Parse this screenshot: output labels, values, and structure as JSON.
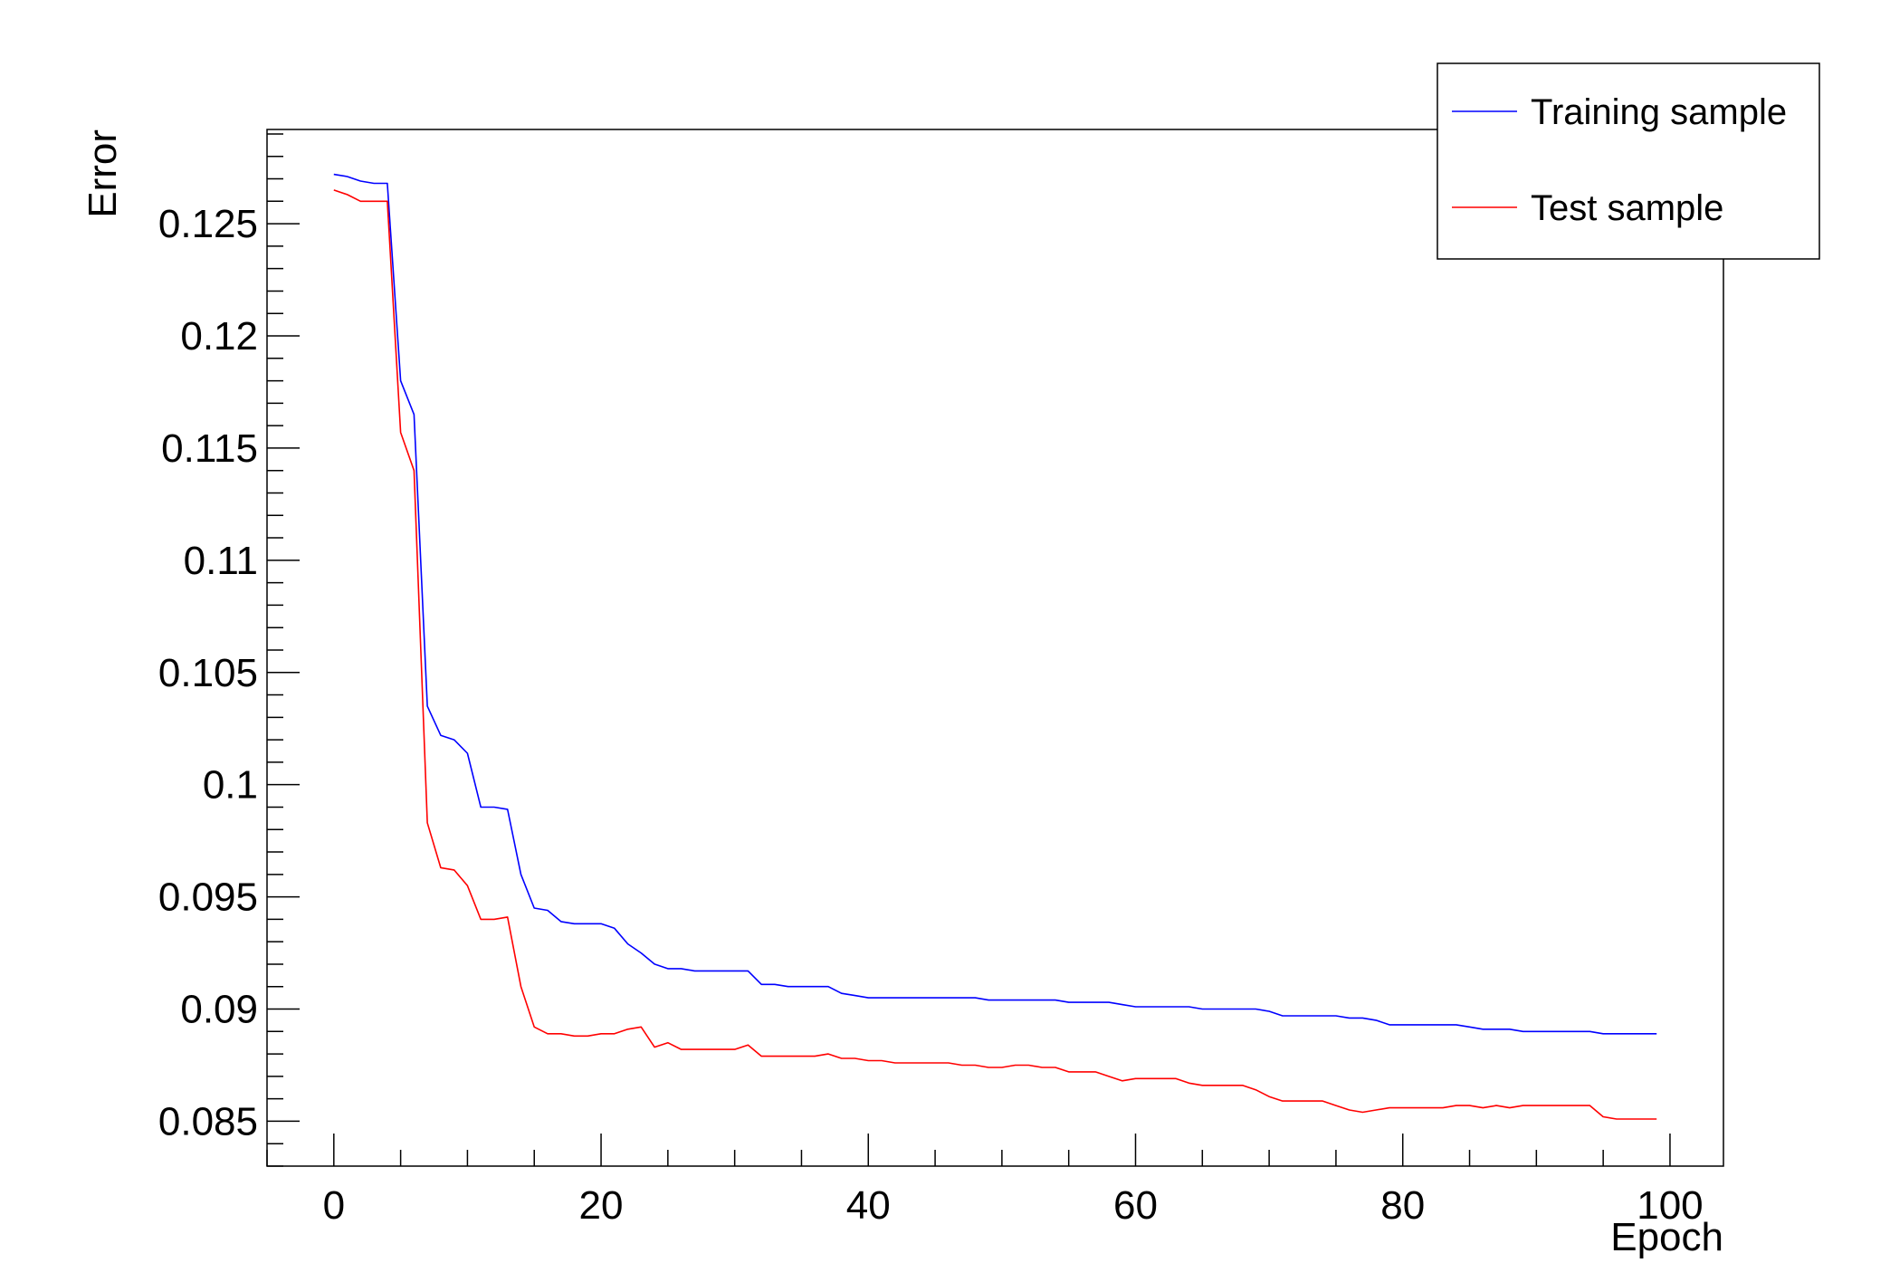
{
  "chart_data": {
    "type": "line",
    "xlabel": "Epoch",
    "ylabel": "Error",
    "xlim": [
      -5,
      104
    ],
    "ylim": [
      0.083,
      0.1292
    ],
    "xticks": [
      0,
      20,
      40,
      60,
      80,
      100
    ],
    "xtick_labels": [
      "0",
      "20",
      "40",
      "60",
      "80",
      "100"
    ],
    "yticks": [
      0.085,
      0.09,
      0.095,
      0.1,
      0.105,
      0.11,
      0.115,
      0.12,
      0.125
    ],
    "ytick_labels": [
      "0.085",
      "0.09",
      "0.095",
      "0.1",
      "0.105",
      "0.11",
      "0.115",
      "0.12",
      "0.125"
    ],
    "grid": false,
    "legend_position": "top-right",
    "series": [
      {
        "name": "Training sample",
        "color": "#0000ff",
        "x": [
          0,
          1,
          2,
          3,
          4,
          5,
          6,
          7,
          8,
          9,
          10,
          11,
          12,
          13,
          14,
          15,
          16,
          17,
          18,
          19,
          20,
          21,
          22,
          23,
          24,
          25,
          26,
          27,
          28,
          29,
          30,
          31,
          32,
          33,
          34,
          35,
          36,
          37,
          38,
          39,
          40,
          41,
          42,
          43,
          44,
          45,
          46,
          47,
          48,
          49,
          50,
          51,
          52,
          53,
          54,
          55,
          56,
          57,
          58,
          59,
          60,
          61,
          62,
          63,
          64,
          65,
          66,
          67,
          68,
          69,
          70,
          71,
          72,
          73,
          74,
          75,
          76,
          77,
          78,
          79,
          80,
          81,
          82,
          83,
          84,
          85,
          86,
          87,
          88,
          89,
          90,
          91,
          92,
          93,
          94,
          95,
          96,
          97,
          98,
          99
        ],
        "y": [
          0.1272,
          0.1271,
          0.1269,
          0.1268,
          0.1268,
          0.118,
          0.1165,
          0.1035,
          0.1022,
          0.102,
          0.1014,
          0.099,
          0.099,
          0.0989,
          0.096,
          0.0945,
          0.0944,
          0.0939,
          0.0938,
          0.0938,
          0.0938,
          0.0936,
          0.0929,
          0.0925,
          0.092,
          0.0918,
          0.0918,
          0.0917,
          0.0917,
          0.0917,
          0.0917,
          0.0917,
          0.0911,
          0.0911,
          0.091,
          0.091,
          0.091,
          0.091,
          0.0907,
          0.0906,
          0.0905,
          0.0905,
          0.0905,
          0.0905,
          0.0905,
          0.0905,
          0.0905,
          0.0905,
          0.0905,
          0.0904,
          0.0904,
          0.0904,
          0.0904,
          0.0904,
          0.0904,
          0.0903,
          0.0903,
          0.0903,
          0.0903,
          0.0902,
          0.0901,
          0.0901,
          0.0901,
          0.0901,
          0.0901,
          0.09,
          0.09,
          0.09,
          0.09,
          0.09,
          0.0899,
          0.0897,
          0.0897,
          0.0897,
          0.0897,
          0.0897,
          0.0896,
          0.0896,
          0.0895,
          0.0893,
          0.0893,
          0.0893,
          0.0893,
          0.0893,
          0.0893,
          0.0892,
          0.0891,
          0.0891,
          0.0891,
          0.089,
          0.089,
          0.089,
          0.089,
          0.089,
          0.089,
          0.0889,
          0.0889,
          0.0889,
          0.0889,
          0.0889
        ]
      },
      {
        "name": "Test sample",
        "color": "#ff0000",
        "x": [
          0,
          1,
          2,
          3,
          4,
          5,
          6,
          7,
          8,
          9,
          10,
          11,
          12,
          13,
          14,
          15,
          16,
          17,
          18,
          19,
          20,
          21,
          22,
          23,
          24,
          25,
          26,
          27,
          28,
          29,
          30,
          31,
          32,
          33,
          34,
          35,
          36,
          37,
          38,
          39,
          40,
          41,
          42,
          43,
          44,
          45,
          46,
          47,
          48,
          49,
          50,
          51,
          52,
          53,
          54,
          55,
          56,
          57,
          58,
          59,
          60,
          61,
          62,
          63,
          64,
          65,
          66,
          67,
          68,
          69,
          70,
          71,
          72,
          73,
          74,
          75,
          76,
          77,
          78,
          79,
          80,
          81,
          82,
          83,
          84,
          85,
          86,
          87,
          88,
          89,
          90,
          91,
          92,
          93,
          94,
          95,
          96,
          97,
          98,
          99
        ],
        "y": [
          0.1265,
          0.1263,
          0.126,
          0.126,
          0.126,
          0.1157,
          0.114,
          0.0983,
          0.0963,
          0.0962,
          0.0955,
          0.094,
          0.094,
          0.0941,
          0.091,
          0.0892,
          0.0889,
          0.0889,
          0.0888,
          0.0888,
          0.0889,
          0.0889,
          0.0891,
          0.0892,
          0.0883,
          0.0885,
          0.0882,
          0.0882,
          0.0882,
          0.0882,
          0.0882,
          0.0884,
          0.0879,
          0.0879,
          0.0879,
          0.0879,
          0.0879,
          0.088,
          0.0878,
          0.0878,
          0.0877,
          0.0877,
          0.0876,
          0.0876,
          0.0876,
          0.0876,
          0.0876,
          0.0875,
          0.0875,
          0.0874,
          0.0874,
          0.0875,
          0.0875,
          0.0874,
          0.0874,
          0.0872,
          0.0872,
          0.0872,
          0.087,
          0.0868,
          0.0869,
          0.0869,
          0.0869,
          0.0869,
          0.0867,
          0.0866,
          0.0866,
          0.0866,
          0.0866,
          0.0864,
          0.0861,
          0.0859,
          0.0859,
          0.0859,
          0.0859,
          0.0857,
          0.0855,
          0.0854,
          0.0855,
          0.0856,
          0.0856,
          0.0856,
          0.0856,
          0.0856,
          0.0857,
          0.0857,
          0.0856,
          0.0857,
          0.0856,
          0.0857,
          0.0857,
          0.0857,
          0.0857,
          0.0857,
          0.0857,
          0.0852,
          0.0851,
          0.0851,
          0.0851,
          0.0851
        ]
      }
    ]
  }
}
